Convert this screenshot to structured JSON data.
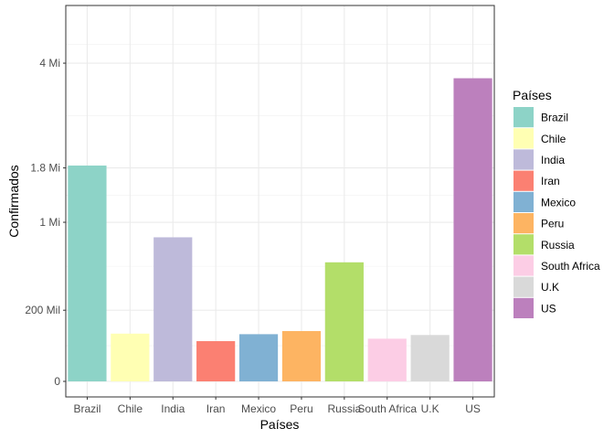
{
  "chart_data": {
    "type": "bar",
    "xlabel": "Países",
    "ylabel": "Confirmados",
    "legend_title": "Países",
    "legend_position": "right",
    "scale": "sqrt",
    "grid": true,
    "ylim": [
      0,
      5000000
    ],
    "yticks": [
      {
        "value": 0,
        "label": "0"
      },
      {
        "value": 200000,
        "label": "200 Mil"
      },
      {
        "value": 1000000,
        "label": "1 Mi"
      },
      {
        "value": 1800000,
        "label": "1.8 Mi"
      },
      {
        "value": 4000000,
        "label": "4 Mi"
      }
    ],
    "categories": [
      "Brazil",
      "Chile",
      "India",
      "Iran",
      "Mexico",
      "Peru",
      "Russia",
      "South Africa",
      "U.K",
      "US"
    ],
    "values": [
      1840000,
      90000,
      820000,
      64000,
      88000,
      100000,
      560000,
      72000,
      85000,
      3630000
    ],
    "colors": [
      "#8DD3C7",
      "#FFFFB3",
      "#BEBADA",
      "#FB8072",
      "#80B1D3",
      "#FDB462",
      "#B3DE69",
      "#FCCDE5",
      "#D9D9D9",
      "#BC80BD"
    ]
  }
}
